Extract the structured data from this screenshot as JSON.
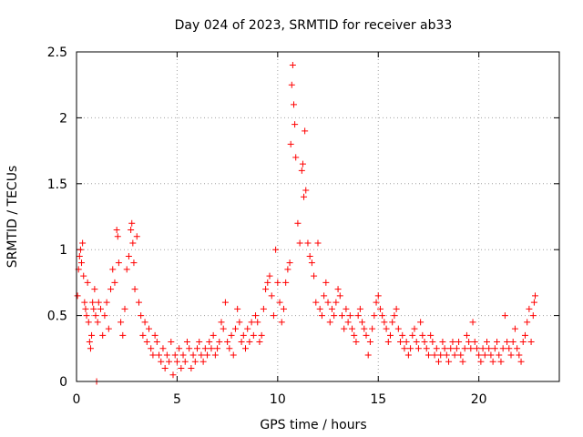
{
  "chart_data": {
    "type": "scatter",
    "title": "Day 024 of 2023, SRMTID for receiver ab33",
    "xlabel": "GPS time / hours",
    "ylabel": "SRMTID / TECUs",
    "xlim": [
      0,
      24
    ],
    "ylim": [
      0,
      2.5
    ],
    "xticks": [
      0,
      5,
      10,
      15,
      20
    ],
    "yticks": [
      0,
      0.5,
      1,
      1.5,
      2,
      2.5
    ],
    "xtick_labels": [
      "0",
      "5",
      "10",
      "15",
      "20"
    ],
    "ytick_labels": [
      "0",
      "0.5",
      "1",
      "1.5",
      "2",
      "2.5"
    ],
    "grid": true,
    "marker": "+",
    "color": "#ff0000",
    "series": [
      {
        "name": "SRMTID",
        "points": [
          [
            0.05,
            0.65
          ],
          [
            0.1,
            0.85
          ],
          [
            0.15,
            0.95
          ],
          [
            0.2,
            1.0
          ],
          [
            0.25,
            0.9
          ],
          [
            0.3,
            1.05
          ],
          [
            0.35,
            0.8
          ],
          [
            0.4,
            0.6
          ],
          [
            0.45,
            0.55
          ],
          [
            0.5,
            0.5
          ],
          [
            0.55,
            0.75
          ],
          [
            0.6,
            0.45
          ],
          [
            0.65,
            0.3
          ],
          [
            0.7,
            0.25
          ],
          [
            0.75,
            0.35
          ],
          [
            0.8,
            0.6
          ],
          [
            0.85,
            0.55
          ],
          [
            0.9,
            0.7
          ],
          [
            0.95,
            0.5
          ],
          [
            1.0,
            0.0
          ],
          [
            1.05,
            0.45
          ],
          [
            1.1,
            0.6
          ],
          [
            1.2,
            0.55
          ],
          [
            1.3,
            0.35
          ],
          [
            1.4,
            0.5
          ],
          [
            1.5,
            0.6
          ],
          [
            1.6,
            0.4
          ],
          [
            1.7,
            0.7
          ],
          [
            1.8,
            0.85
          ],
          [
            1.9,
            0.75
          ],
          [
            2.0,
            1.15
          ],
          [
            2.05,
            1.1
          ],
          [
            2.1,
            0.9
          ],
          [
            2.2,
            0.45
          ],
          [
            2.3,
            0.35
          ],
          [
            2.4,
            0.55
          ],
          [
            2.5,
            0.85
          ],
          [
            2.6,
            0.95
          ],
          [
            2.7,
            1.15
          ],
          [
            2.75,
            1.2
          ],
          [
            2.8,
            1.05
          ],
          [
            2.85,
            0.9
          ],
          [
            2.9,
            0.7
          ],
          [
            3.0,
            1.1
          ],
          [
            3.1,
            0.6
          ],
          [
            3.2,
            0.5
          ],
          [
            3.3,
            0.35
          ],
          [
            3.4,
            0.45
          ],
          [
            3.5,
            0.3
          ],
          [
            3.6,
            0.4
          ],
          [
            3.7,
            0.25
          ],
          [
            3.8,
            0.2
          ],
          [
            3.9,
            0.35
          ],
          [
            4.0,
            0.3
          ],
          [
            4.1,
            0.2
          ],
          [
            4.2,
            0.15
          ],
          [
            4.3,
            0.25
          ],
          [
            4.4,
            0.1
          ],
          [
            4.5,
            0.2
          ],
          [
            4.6,
            0.15
          ],
          [
            4.7,
            0.3
          ],
          [
            4.8,
            0.05
          ],
          [
            4.9,
            0.2
          ],
          [
            5.0,
            0.15
          ],
          [
            5.1,
            0.25
          ],
          [
            5.2,
            0.1
          ],
          [
            5.3,
            0.2
          ],
          [
            5.4,
            0.15
          ],
          [
            5.5,
            0.3
          ],
          [
            5.6,
            0.25
          ],
          [
            5.7,
            0.1
          ],
          [
            5.8,
            0.2
          ],
          [
            5.9,
            0.15
          ],
          [
            6.0,
            0.25
          ],
          [
            6.1,
            0.3
          ],
          [
            6.2,
            0.2
          ],
          [
            6.3,
            0.15
          ],
          [
            6.4,
            0.25
          ],
          [
            6.5,
            0.2
          ],
          [
            6.6,
            0.3
          ],
          [
            6.7,
            0.25
          ],
          [
            6.8,
            0.35
          ],
          [
            6.9,
            0.2
          ],
          [
            7.0,
            0.25
          ],
          [
            7.1,
            0.3
          ],
          [
            7.2,
            0.45
          ],
          [
            7.3,
            0.4
          ],
          [
            7.4,
            0.6
          ],
          [
            7.5,
            0.3
          ],
          [
            7.6,
            0.25
          ],
          [
            7.7,
            0.35
          ],
          [
            7.8,
            0.2
          ],
          [
            7.9,
            0.4
          ],
          [
            8.0,
            0.55
          ],
          [
            8.1,
            0.45
          ],
          [
            8.2,
            0.3
          ],
          [
            8.3,
            0.35
          ],
          [
            8.4,
            0.25
          ],
          [
            8.5,
            0.4
          ],
          [
            8.6,
            0.3
          ],
          [
            8.7,
            0.45
          ],
          [
            8.8,
            0.35
          ],
          [
            8.9,
            0.5
          ],
          [
            9.0,
            0.45
          ],
          [
            9.1,
            0.3
          ],
          [
            9.2,
            0.35
          ],
          [
            9.3,
            0.55
          ],
          [
            9.4,
            0.7
          ],
          [
            9.5,
            0.75
          ],
          [
            9.6,
            0.8
          ],
          [
            9.7,
            0.65
          ],
          [
            9.8,
            0.5
          ],
          [
            9.9,
            1.0
          ],
          [
            10.0,
            0.75
          ],
          [
            10.1,
            0.6
          ],
          [
            10.2,
            0.45
          ],
          [
            10.3,
            0.55
          ],
          [
            10.4,
            0.75
          ],
          [
            10.5,
            0.85
          ],
          [
            10.6,
            0.9
          ],
          [
            10.65,
            1.8
          ],
          [
            10.7,
            2.25
          ],
          [
            10.75,
            2.4
          ],
          [
            10.8,
            2.1
          ],
          [
            10.85,
            1.95
          ],
          [
            10.9,
            1.7
          ],
          [
            11.0,
            1.2
          ],
          [
            11.1,
            1.05
          ],
          [
            11.2,
            1.6
          ],
          [
            11.25,
            1.65
          ],
          [
            11.3,
            1.4
          ],
          [
            11.35,
            1.9
          ],
          [
            11.4,
            1.45
          ],
          [
            11.5,
            1.05
          ],
          [
            11.6,
            0.95
          ],
          [
            11.7,
            0.9
          ],
          [
            11.8,
            0.8
          ],
          [
            11.9,
            0.6
          ],
          [
            12.0,
            1.05
          ],
          [
            12.1,
            0.55
          ],
          [
            12.2,
            0.5
          ],
          [
            12.3,
            0.65
          ],
          [
            12.4,
            0.75
          ],
          [
            12.5,
            0.6
          ],
          [
            12.6,
            0.45
          ],
          [
            12.7,
            0.55
          ],
          [
            12.8,
            0.5
          ],
          [
            12.9,
            0.6
          ],
          [
            13.0,
            0.7
          ],
          [
            13.1,
            0.65
          ],
          [
            13.2,
            0.5
          ],
          [
            13.3,
            0.4
          ],
          [
            13.4,
            0.55
          ],
          [
            13.5,
            0.45
          ],
          [
            13.6,
            0.5
          ],
          [
            13.7,
            0.4
          ],
          [
            13.8,
            0.35
          ],
          [
            13.9,
            0.3
          ],
          [
            14.0,
            0.5
          ],
          [
            14.1,
            0.55
          ],
          [
            14.2,
            0.45
          ],
          [
            14.3,
            0.4
          ],
          [
            14.4,
            0.35
          ],
          [
            14.5,
            0.2
          ],
          [
            14.6,
            0.3
          ],
          [
            14.7,
            0.4
          ],
          [
            14.8,
            0.5
          ],
          [
            14.9,
            0.6
          ],
          [
            15.0,
            0.65
          ],
          [
            15.1,
            0.55
          ],
          [
            15.2,
            0.5
          ],
          [
            15.3,
            0.45
          ],
          [
            15.4,
            0.4
          ],
          [
            15.5,
            0.3
          ],
          [
            15.6,
            0.35
          ],
          [
            15.7,
            0.45
          ],
          [
            15.8,
            0.5
          ],
          [
            15.9,
            0.55
          ],
          [
            16.0,
            0.4
          ],
          [
            16.1,
            0.3
          ],
          [
            16.2,
            0.35
          ],
          [
            16.3,
            0.25
          ],
          [
            16.4,
            0.3
          ],
          [
            16.5,
            0.2
          ],
          [
            16.6,
            0.25
          ],
          [
            16.7,
            0.35
          ],
          [
            16.8,
            0.4
          ],
          [
            16.9,
            0.3
          ],
          [
            17.0,
            0.25
          ],
          [
            17.1,
            0.45
          ],
          [
            17.2,
            0.35
          ],
          [
            17.3,
            0.3
          ],
          [
            17.4,
            0.25
          ],
          [
            17.5,
            0.2
          ],
          [
            17.6,
            0.35
          ],
          [
            17.7,
            0.3
          ],
          [
            17.8,
            0.2
          ],
          [
            17.9,
            0.25
          ],
          [
            18.0,
            0.15
          ],
          [
            18.1,
            0.2
          ],
          [
            18.2,
            0.3
          ],
          [
            18.3,
            0.25
          ],
          [
            18.4,
            0.2
          ],
          [
            18.5,
            0.15
          ],
          [
            18.6,
            0.25
          ],
          [
            18.7,
            0.3
          ],
          [
            18.8,
            0.2
          ],
          [
            18.9,
            0.25
          ],
          [
            19.0,
            0.3
          ],
          [
            19.1,
            0.2
          ],
          [
            19.2,
            0.15
          ],
          [
            19.3,
            0.25
          ],
          [
            19.4,
            0.35
          ],
          [
            19.5,
            0.3
          ],
          [
            19.6,
            0.25
          ],
          [
            19.7,
            0.45
          ],
          [
            19.8,
            0.3
          ],
          [
            19.9,
            0.25
          ],
          [
            20.0,
            0.2
          ],
          [
            20.1,
            0.15
          ],
          [
            20.2,
            0.25
          ],
          [
            20.3,
            0.2
          ],
          [
            20.4,
            0.3
          ],
          [
            20.5,
            0.25
          ],
          [
            20.6,
            0.2
          ],
          [
            20.7,
            0.15
          ],
          [
            20.8,
            0.25
          ],
          [
            20.9,
            0.3
          ],
          [
            21.0,
            0.2
          ],
          [
            21.1,
            0.15
          ],
          [
            21.2,
            0.25
          ],
          [
            21.3,
            0.5
          ],
          [
            21.4,
            0.3
          ],
          [
            21.5,
            0.25
          ],
          [
            21.6,
            0.2
          ],
          [
            21.7,
            0.3
          ],
          [
            21.8,
            0.4
          ],
          [
            21.9,
            0.25
          ],
          [
            22.0,
            0.2
          ],
          [
            22.1,
            0.15
          ],
          [
            22.2,
            0.3
          ],
          [
            22.3,
            0.35
          ],
          [
            22.4,
            0.45
          ],
          [
            22.5,
            0.55
          ],
          [
            22.6,
            0.3
          ],
          [
            22.7,
            0.5
          ],
          [
            22.75,
            0.6
          ],
          [
            22.8,
            0.65
          ]
        ]
      }
    ]
  }
}
